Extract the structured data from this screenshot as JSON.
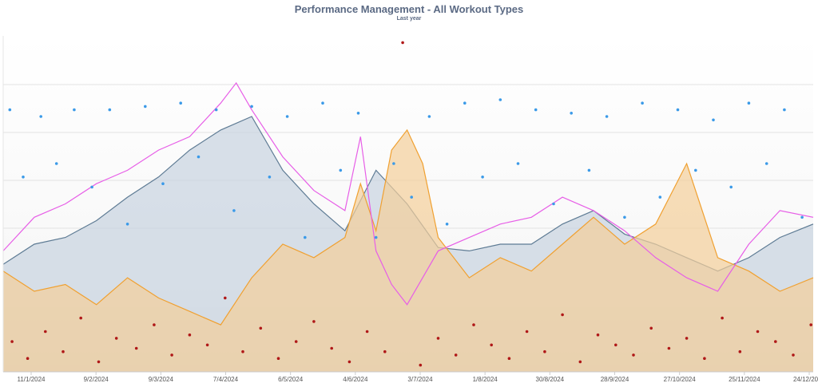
{
  "chart_data": {
    "type": "area",
    "title": "Performance Management - All Workout Types",
    "subtitle": "Last year",
    "xlabel": "",
    "ylabel": "",
    "x_range": [
      "2024-01-01",
      "2024-12-31"
    ],
    "x_ticks": [
      "11/1/2024",
      "9/2/2024",
      "9/3/2024",
      "7/4/2024",
      "6/5/2024",
      "4/6/2024",
      "3/7/2024",
      "1/8/2024",
      "30/8/2024",
      "28/9/2024",
      "27/10/2024",
      "25/11/2024",
      "24/12/2024"
    ],
    "grid": true,
    "legend": "none",
    "colors": {
      "fitness_fill": "#c7d3e0",
      "fitness_line": "#5e7b94",
      "fatigue_fill": "#f4cf9a",
      "fatigue_line": "#f0a030",
      "form_line": "#e75ee7",
      "blue_dots": "#3b9ae8",
      "red_dots": "#b01818"
    },
    "series": [
      {
        "type": "area",
        "color_key": "fitness",
        "x": [
          "2024-01-01",
          "2024-01-15",
          "2024-01-29",
          "2024-02-12",
          "2024-02-26",
          "2024-03-11",
          "2024-03-25",
          "2024-04-08",
          "2024-04-22",
          "2024-05-06",
          "2024-05-20",
          "2024-06-03",
          "2024-06-17",
          "2024-07-01",
          "2024-07-15",
          "2024-07-29",
          "2024-08-12",
          "2024-08-26",
          "2024-09-09",
          "2024-09-23",
          "2024-10-07",
          "2024-10-21",
          "2024-11-04",
          "2024-11-18",
          "2024-12-02",
          "2024-12-16",
          "2024-12-31"
        ],
        "y": [
          32,
          38,
          40,
          45,
          52,
          58,
          66,
          72,
          76,
          60,
          50,
          42,
          60,
          50,
          37,
          36,
          38,
          38,
          44,
          48,
          41,
          38,
          34,
          30,
          34,
          40,
          44
        ]
      },
      {
        "type": "area",
        "color_key": "fatigue",
        "x": [
          "2024-01-01",
          "2024-01-15",
          "2024-01-29",
          "2024-02-12",
          "2024-02-26",
          "2024-03-11",
          "2024-03-25",
          "2024-04-08",
          "2024-04-22",
          "2024-05-06",
          "2024-05-20",
          "2024-06-03",
          "2024-06-10",
          "2024-06-17",
          "2024-06-24",
          "2024-07-01",
          "2024-07-08",
          "2024-07-15",
          "2024-07-29",
          "2024-08-12",
          "2024-08-26",
          "2024-09-09",
          "2024-09-23",
          "2024-10-07",
          "2024-10-21",
          "2024-11-04",
          "2024-11-18",
          "2024-12-02",
          "2024-12-16",
          "2024-12-31"
        ],
        "y": [
          30,
          24,
          26,
          20,
          28,
          22,
          18,
          14,
          28,
          38,
          34,
          40,
          56,
          42,
          66,
          72,
          62,
          40,
          28,
          34,
          30,
          38,
          46,
          38,
          44,
          62,
          34,
          30,
          24,
          28
        ]
      },
      {
        "type": "line",
        "color_key": "form",
        "x": [
          "2024-01-01",
          "2024-01-15",
          "2024-01-29",
          "2024-02-12",
          "2024-02-26",
          "2024-03-11",
          "2024-03-25",
          "2024-04-08",
          "2024-04-15",
          "2024-04-22",
          "2024-05-06",
          "2024-05-20",
          "2024-06-03",
          "2024-06-10",
          "2024-06-17",
          "2024-06-24",
          "2024-07-01",
          "2024-07-15",
          "2024-07-29",
          "2024-08-12",
          "2024-08-26",
          "2024-09-09",
          "2024-09-23",
          "2024-10-07",
          "2024-10-21",
          "2024-11-04",
          "2024-11-18",
          "2024-12-02",
          "2024-12-16",
          "2024-12-31"
        ],
        "y": [
          36,
          46,
          50,
          56,
          60,
          66,
          70,
          80,
          86,
          78,
          64,
          54,
          48,
          70,
          36,
          26,
          20,
          36,
          40,
          44,
          46,
          52,
          48,
          42,
          34,
          28,
          24,
          38,
          48,
          46
        ]
      },
      {
        "type": "scatter",
        "color_key": "blue_dots",
        "x": [
          "2024-01-04",
          "2024-01-10",
          "2024-01-18",
          "2024-01-25",
          "2024-02-02",
          "2024-02-10",
          "2024-02-18",
          "2024-02-26",
          "2024-03-05",
          "2024-03-13",
          "2024-03-21",
          "2024-03-29",
          "2024-04-06",
          "2024-04-14",
          "2024-04-22",
          "2024-04-30",
          "2024-05-08",
          "2024-05-16",
          "2024-05-24",
          "2024-06-01",
          "2024-06-09",
          "2024-06-17",
          "2024-06-25",
          "2024-07-03",
          "2024-07-11",
          "2024-07-19",
          "2024-07-27",
          "2024-08-04",
          "2024-08-12",
          "2024-08-20",
          "2024-08-28",
          "2024-09-05",
          "2024-09-13",
          "2024-09-21",
          "2024-09-29",
          "2024-10-07",
          "2024-10-15",
          "2024-10-23",
          "2024-10-31",
          "2024-11-08",
          "2024-11-16",
          "2024-11-24",
          "2024-12-02",
          "2024-12-10",
          "2024-12-18",
          "2024-12-26"
        ],
        "y": [
          78,
          58,
          76,
          62,
          78,
          55,
          78,
          44,
          79,
          56,
          80,
          64,
          78,
          48,
          79,
          58,
          76,
          40,
          80,
          60,
          77,
          40,
          62,
          52,
          76,
          44,
          80,
          58,
          81,
          62,
          78,
          50,
          77,
          60,
          76,
          46,
          80,
          52,
          78,
          60,
          75,
          55,
          80,
          62,
          78,
          46
        ]
      },
      {
        "type": "scatter",
        "color_key": "red_dots",
        "x": [
          "2024-01-05",
          "2024-01-12",
          "2024-01-20",
          "2024-01-28",
          "2024-02-05",
          "2024-02-13",
          "2024-02-21",
          "2024-03-01",
          "2024-03-09",
          "2024-03-17",
          "2024-03-25",
          "2024-04-02",
          "2024-04-10",
          "2024-04-18",
          "2024-04-26",
          "2024-05-04",
          "2024-05-12",
          "2024-05-20",
          "2024-05-28",
          "2024-06-05",
          "2024-06-13",
          "2024-06-21",
          "2024-06-29",
          "2024-07-07",
          "2024-07-15",
          "2024-07-23",
          "2024-07-31",
          "2024-08-08",
          "2024-08-16",
          "2024-08-24",
          "2024-09-01",
          "2024-09-09",
          "2024-09-17",
          "2024-09-25",
          "2024-10-03",
          "2024-10-11",
          "2024-10-19",
          "2024-10-27",
          "2024-11-04",
          "2024-11-12",
          "2024-11-20",
          "2024-11-28",
          "2024-12-06",
          "2024-12-14",
          "2024-12-22",
          "2024-12-30"
        ],
        "y": [
          9,
          4,
          12,
          6,
          16,
          3,
          10,
          7,
          14,
          5,
          11,
          8,
          22,
          6,
          13,
          4,
          9,
          15,
          7,
          3,
          12,
          6,
          98,
          2,
          10,
          5,
          14,
          8,
          4,
          12,
          6,
          17,
          3,
          11,
          8,
          5,
          13,
          7,
          10,
          4,
          16,
          6,
          12,
          9,
          5,
          14
        ]
      }
    ]
  }
}
